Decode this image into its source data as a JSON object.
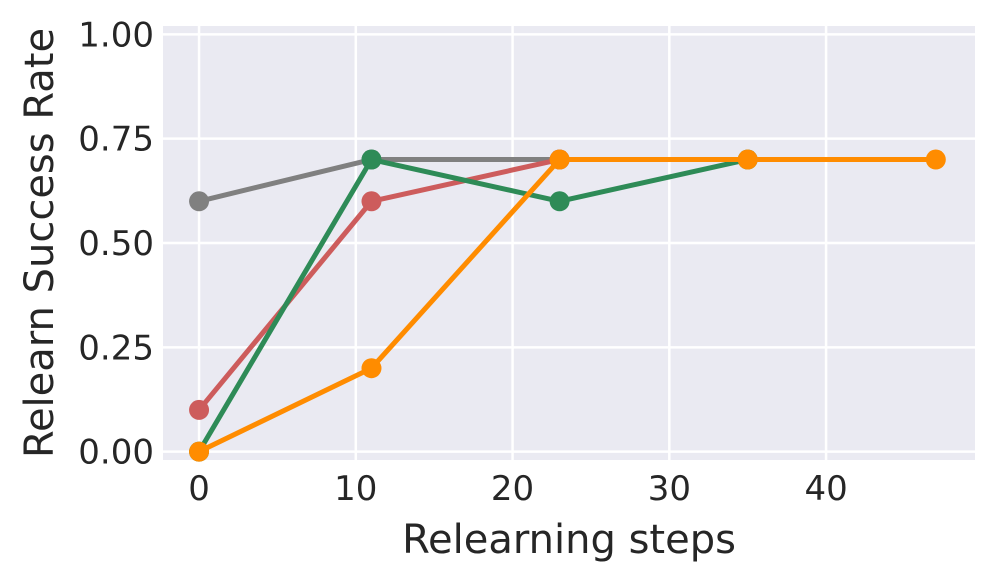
{
  "chart_data": {
    "type": "line",
    "xlabel": "Relearning steps",
    "ylabel": "Relearn Success Rate",
    "xlim": [
      -2.3,
      49.5
    ],
    "ylim": [
      -0.02,
      1.02
    ],
    "xticks": [
      0,
      10,
      20,
      30,
      40
    ],
    "xtick_labels": [
      "0",
      "10",
      "20",
      "30",
      "40"
    ],
    "yticks": [
      0.0,
      0.25,
      0.5,
      0.75,
      1.0
    ],
    "ytick_labels": [
      "0.00",
      "0.25",
      "0.50",
      "0.75",
      "1.00"
    ],
    "grid": true,
    "background": "#eaeaf2",
    "series": [
      {
        "color": "#808080",
        "x": [
          0,
          11,
          23
        ],
        "y": [
          0.6,
          0.7,
          0.7
        ]
      },
      {
        "color": "#cd5c5c",
        "x": [
          0,
          11,
          23
        ],
        "y": [
          0.1,
          0.6,
          0.7
        ]
      },
      {
        "color": "#2e8b57",
        "x": [
          0,
          11,
          23,
          35
        ],
        "y": [
          0.0,
          0.7,
          0.6,
          0.7
        ]
      },
      {
        "color": "#ff8c00",
        "x": [
          0,
          11,
          23,
          35,
          47
        ],
        "y": [
          0.0,
          0.2,
          0.7,
          0.7,
          0.7
        ]
      }
    ]
  }
}
